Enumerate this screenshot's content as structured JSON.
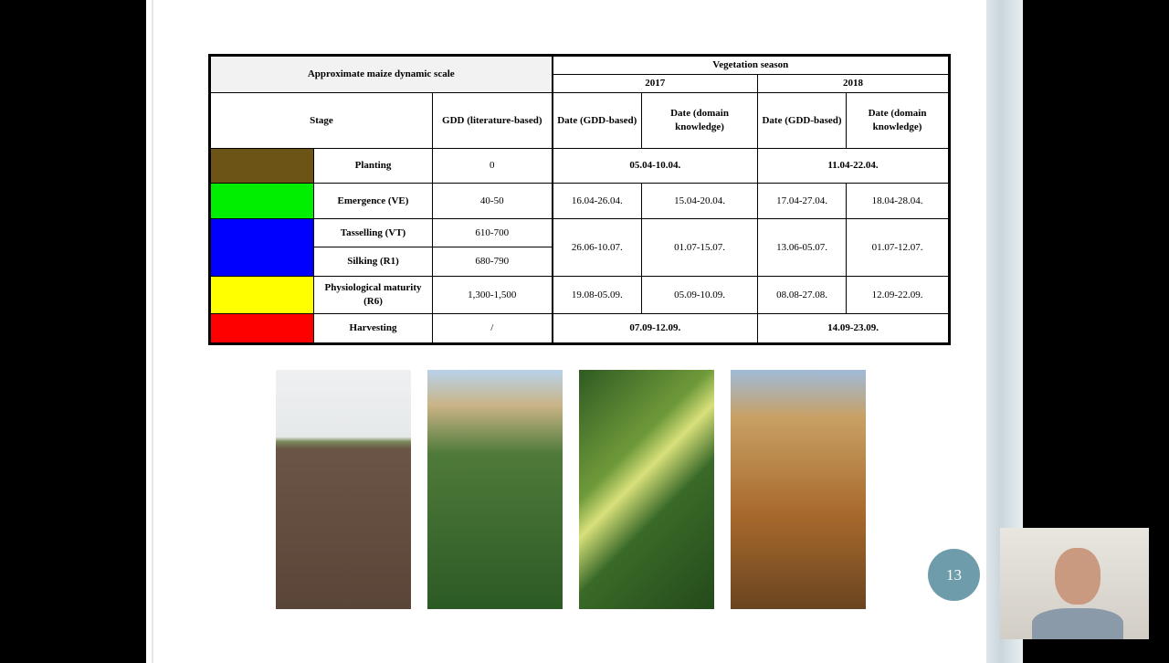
{
  "table": {
    "title": "Approximate maize dynamic scale",
    "season": "Vegetation season",
    "years": [
      "2017",
      "2018"
    ],
    "headers": {
      "stage": "Stage",
      "gdd": "GDD (literature-based)",
      "dates": [
        "Date (GDD-based)",
        "Date (domain knowledge)",
        "Date (GDD-based)",
        "Date (domain knowledge)"
      ]
    },
    "rows": [
      {
        "color": "#6b5416",
        "stage": "Planting",
        "gdd": "0",
        "dates": [
          "05.04-10.04.",
          "11.04-22.04."
        ]
      },
      {
        "color": "#00ee00",
        "stage": "Emergence (VE)",
        "gdd": "40-50",
        "dates": [
          "16.04-26.04.",
          "15.04-20.04.",
          "17.04-27.04.",
          "18.04-28.04."
        ]
      },
      {
        "color": "#0000ff",
        "stage": "Tasselling (VT)",
        "gdd": "610-700",
        "dates": [
          "26.06-10.07.",
          "01.07-15.07.",
          "13.06-05.07.",
          "01.07-12.07."
        ]
      },
      {
        "stage": "Silking (R1)",
        "gdd": "680-790"
      },
      {
        "color": "#ffff00",
        "stage": "Physiological maturity (R6)",
        "gdd": "1,300-1,500",
        "dates": [
          "19.08-05.09.",
          "05.09-10.09.",
          "08.08-27.08.",
          "12.09-22.09."
        ]
      },
      {
        "color": "#ff0000",
        "stage": "Harvesting",
        "gdd": "/",
        "dates": [
          "07.09-12.09.",
          "14.09-23.09."
        ]
      }
    ]
  },
  "page_number": "13"
}
